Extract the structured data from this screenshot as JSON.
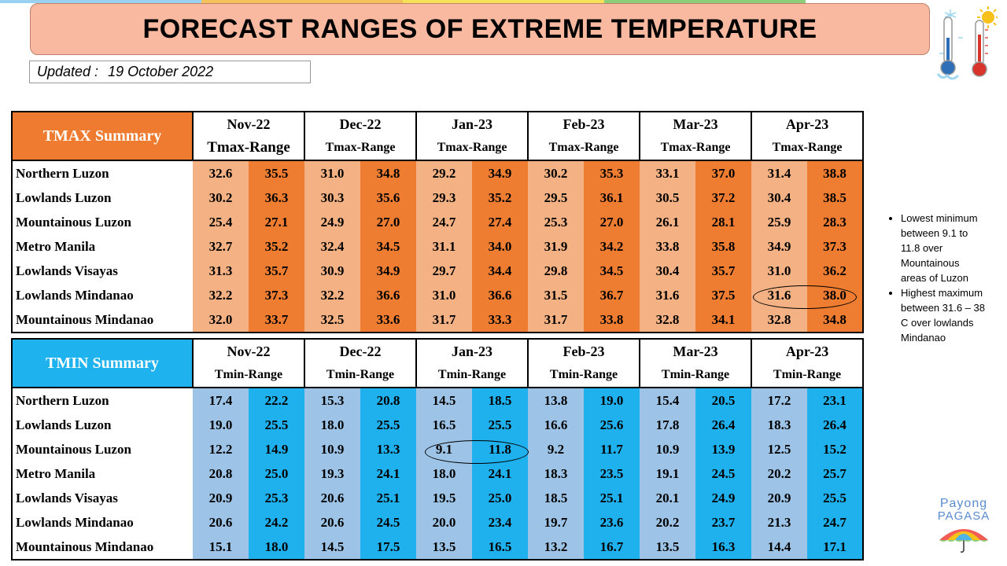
{
  "title": "FORECAST RANGES OF EXTREME TEMPERATURE",
  "updated_label": "Updated :",
  "updated_date": "19 October 2022",
  "colors": {
    "title_bg": "#f8b9a0",
    "tmax_header": "#ee7b2f",
    "tmax_low_cell": "#f4b183",
    "tmax_high_cell": "#ef7d31",
    "tmin_header": "#1eb2ee",
    "tmin_low_cell": "#9dc3e6",
    "tmin_high_cell": "#1fb0ee"
  },
  "months": [
    "Nov-22",
    "Dec-22",
    "Jan-23",
    "Feb-23",
    "Mar-23",
    "Apr-23"
  ],
  "tmax": {
    "label": "TMAX Summary",
    "range_label": "Tmax-Range",
    "rows": [
      {
        "region": "Northern Luzon",
        "values": [
          "32.6",
          "35.5",
          "31.0",
          "34.8",
          "29.2",
          "34.9",
          "30.2",
          "35.3",
          "33.1",
          "37.0",
          "31.4",
          "38.8"
        ]
      },
      {
        "region": "Lowlands Luzon",
        "values": [
          "30.2",
          "36.3",
          "30.3",
          "35.6",
          "29.3",
          "35.2",
          "29.5",
          "36.1",
          "30.5",
          "37.2",
          "30.4",
          "38.5"
        ]
      },
      {
        "region": "Mountainous Luzon",
        "values": [
          "25.4",
          "27.1",
          "24.9",
          "27.0",
          "24.7",
          "27.4",
          "25.3",
          "27.0",
          "26.1",
          "28.1",
          "25.9",
          "28.3"
        ]
      },
      {
        "region": "Metro Manila",
        "values": [
          "32.7",
          "35.2",
          "32.4",
          "34.5",
          "31.1",
          "34.0",
          "31.9",
          "34.2",
          "33.8",
          "35.8",
          "34.9",
          "37.3"
        ]
      },
      {
        "region": "Lowlands Visayas",
        "values": [
          "31.3",
          "35.7",
          "30.9",
          "34.9",
          "29.7",
          "34.4",
          "29.8",
          "34.5",
          "30.4",
          "35.7",
          "31.0",
          "36.2"
        ]
      },
      {
        "region": "Lowlands Mindanao",
        "values": [
          "32.2",
          "37.3",
          "32.2",
          "36.6",
          "31.0",
          "36.6",
          "31.5",
          "36.7",
          "31.6",
          "37.5",
          "31.6",
          "38.0"
        ]
      },
      {
        "region": "Mountainous Mindanao",
        "values": [
          "32.0",
          "33.7",
          "32.5",
          "33.6",
          "31.7",
          "33.3",
          "31.7",
          "33.8",
          "32.8",
          "34.1",
          "32.8",
          "34.8"
        ]
      }
    ]
  },
  "tmin": {
    "label": "TMIN Summary",
    "range_label": "Tmin-Range",
    "rows": [
      {
        "region": "Northern Luzon",
        "values": [
          "17.4",
          "22.2",
          "15.3",
          "20.8",
          "14.5",
          "18.5",
          "13.8",
          "19.0",
          "15.4",
          "20.5",
          "17.2",
          "23.1"
        ]
      },
      {
        "region": "Lowlands Luzon",
        "values": [
          "19.0",
          "25.5",
          "18.0",
          "25.5",
          "16.5",
          "25.5",
          "16.6",
          "25.6",
          "17.8",
          "26.4",
          "18.3",
          "26.4"
        ]
      },
      {
        "region": "Mountainous Luzon",
        "values": [
          "12.2",
          "14.9",
          "10.9",
          "13.3",
          "9.1",
          "11.8",
          "9.2",
          "11.7",
          "10.9",
          "13.9",
          "12.5",
          "15.2"
        ]
      },
      {
        "region": "Metro Manila",
        "values": [
          "20.8",
          "25.0",
          "19.3",
          "24.1",
          "18.0",
          "24.1",
          "18.3",
          "23.5",
          "19.1",
          "24.5",
          "20.2",
          "25.7"
        ]
      },
      {
        "region": "Lowlands Visayas",
        "values": [
          "20.9",
          "25.3",
          "20.6",
          "25.1",
          "19.5",
          "25.0",
          "18.5",
          "25.1",
          "20.1",
          "24.9",
          "20.9",
          "25.5"
        ]
      },
      {
        "region": "Lowlands Mindanao",
        "values": [
          "20.6",
          "24.2",
          "20.6",
          "24.5",
          "20.0",
          "23.4",
          "19.7",
          "23.6",
          "20.2",
          "23.7",
          "21.3",
          "24.7"
        ]
      },
      {
        "region": "Mountainous Mindanao",
        "values": [
          "15.1",
          "18.0",
          "14.5",
          "17.5",
          "13.5",
          "16.5",
          "13.2",
          "16.7",
          "13.5",
          "16.3",
          "14.4",
          "17.1"
        ]
      }
    ]
  },
  "notes": [
    "Lowest minimum between 9.1 to 11.8 over Mountainous areas of Luzon",
    "Highest maximum between 31.6 – 38 C over lowlands Mindanao"
  ],
  "logo": {
    "line1": "Payong",
    "line2": "PAGASA"
  },
  "icons": [
    "cold-thermometer-icon",
    "hot-thermometer-icon",
    "payong-umbrella-icon"
  ]
}
